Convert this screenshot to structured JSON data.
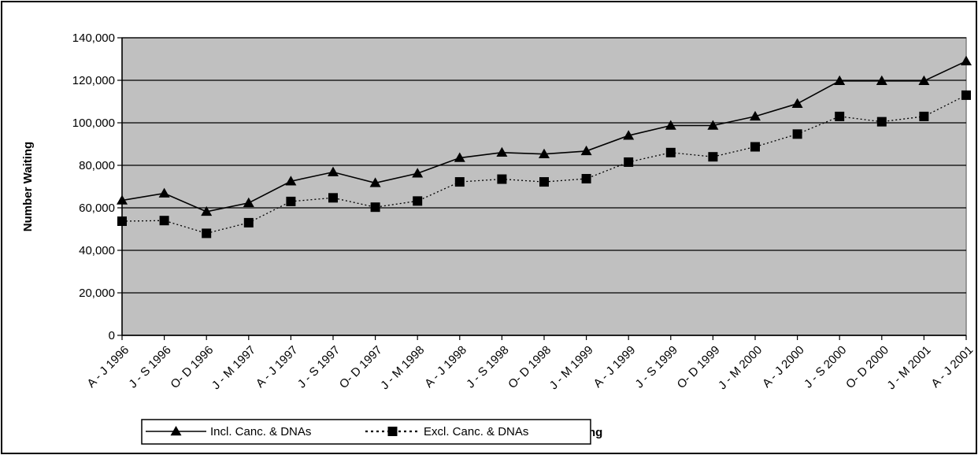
{
  "chart_data": {
    "type": "line",
    "title": "",
    "xlabel": "ng",
    "ylabel": "Number Waiting",
    "ylim": [
      0,
      140000
    ],
    "yticks": [
      0,
      20000,
      40000,
      60000,
      80000,
      100000,
      120000,
      140000
    ],
    "ytick_labels": [
      "0",
      "20,000",
      "40,000",
      "60,000",
      "80,000",
      "100,000",
      "120,000",
      "140,000"
    ],
    "grid": "horizontal",
    "legend_position": "bottom",
    "plot_background": "#c0c0c0",
    "categories": [
      "A - J 1996",
      "J - S 1996",
      "O- D 1996",
      "J - M 1997",
      "A - J 1997",
      "J - S 1997",
      "O- D 1997",
      "J - M 1998",
      "A - J 1998",
      "J - S 1998",
      "O- D 1998",
      "J - M 1999",
      "A - J 1999",
      "J - S 1999",
      "O- D 1999",
      "J - M 2000",
      "A - J 2000",
      "J - S 2000",
      "O- D 2000",
      "J - M 2001",
      "A - J 2001"
    ],
    "series": [
      {
        "name": "Incl. Canc. & DNAs",
        "marker": "triangle",
        "line_style": "solid",
        "color": "#000000",
        "values": [
          63500,
          66800,
          58200,
          62300,
          72500,
          76800,
          71700,
          76200,
          83500,
          86000,
          85300,
          86700,
          94000,
          98700,
          98700,
          103000,
          109000,
          119700,
          119700,
          119700,
          129000
        ]
      },
      {
        "name": "Excl. Canc. & DNAs",
        "marker": "square",
        "line_style": "dotted",
        "color": "#000000",
        "values": [
          53700,
          54000,
          48000,
          53000,
          63000,
          64700,
          60300,
          63200,
          72200,
          73500,
          72200,
          73700,
          81500,
          86000,
          84000,
          88700,
          94700,
          103000,
          100500,
          103000,
          113000
        ]
      }
    ]
  }
}
